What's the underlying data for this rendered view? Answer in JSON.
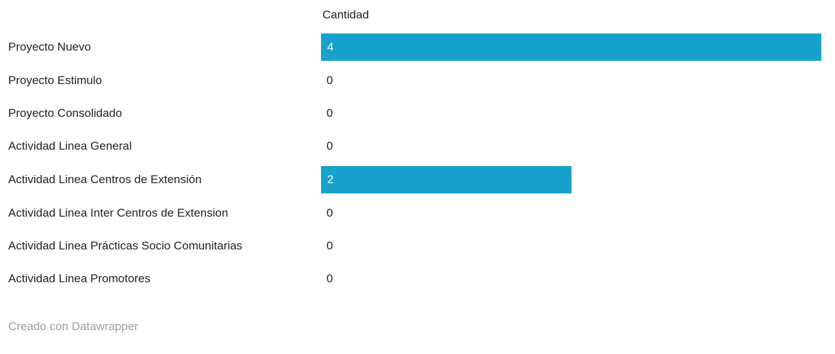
{
  "chart_data": {
    "type": "bar",
    "orientation": "horizontal",
    "title": "",
    "value_column_header": "Cantidad",
    "categories": [
      "Proyecto Nuevo",
      "Proyecto Estimulo",
      "Proyecto Consolidado",
      "Actividad Linea General",
      "Actividad Linea Centros de Extensión",
      "Actividad Linea Inter Centros de Extension",
      "Actividad Linea Prácticas Socio Comunitarias",
      "Actividad Linea Promotores"
    ],
    "values": [
      4,
      0,
      0,
      0,
      2,
      0,
      0,
      0
    ],
    "xlim": [
      0,
      4
    ],
    "grid": false,
    "legend": false,
    "bar_color": "#18a1cd"
  },
  "colors": {
    "bar": "#18a1cd",
    "label_text": "#222222",
    "value_in_bar": "#ffffff",
    "footer_text": "#9d9d9d",
    "background": "#ffffff"
  },
  "footer": {
    "credit": "Creado con Datawrapper"
  }
}
